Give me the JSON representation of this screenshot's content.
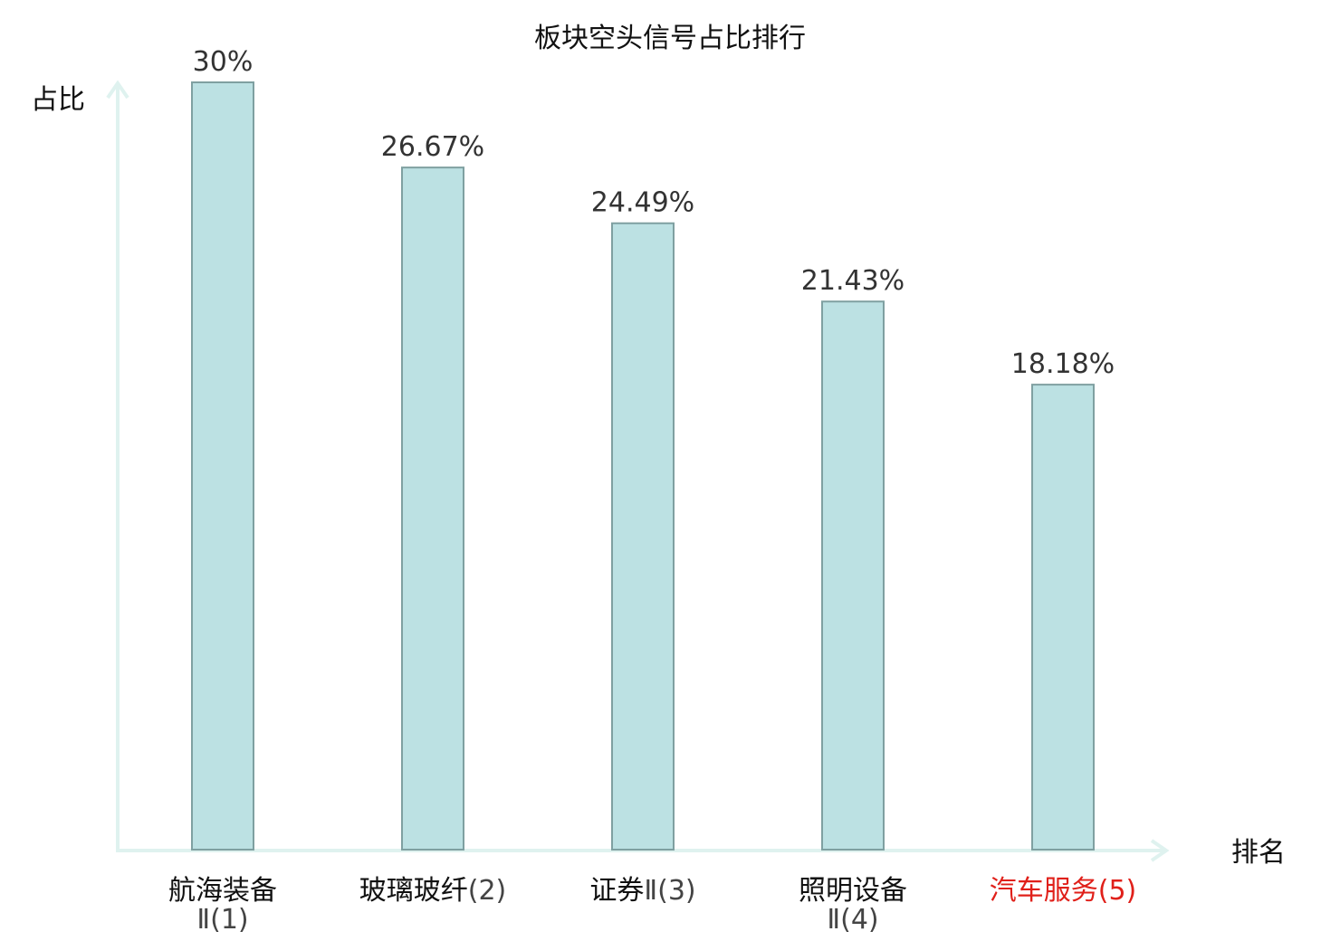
{
  "chart_data": {
    "type": "bar",
    "title": "板块空头信号占比排行",
    "xlabel": "排名",
    "ylabel": "占比",
    "categories": [
      {
        "name": "航海装备",
        "rank": "Ⅱ(1)"
      },
      {
        "name": "玻璃玻纤",
        "rank": "(2)"
      },
      {
        "name": "证券",
        "rank": "Ⅱ(3)"
      },
      {
        "name": "照明设备",
        "rank": "Ⅱ(4)"
      },
      {
        "name": "汽车服务",
        "rank": "(5)",
        "highlight": true
      }
    ],
    "values": [
      30,
      26.67,
      24.49,
      21.43,
      18.18
    ],
    "value_labels": [
      "30%",
      "26.67%",
      "24.49%",
      "21.43%",
      "18.18%"
    ],
    "ylim": [
      0,
      30
    ],
    "grid": false,
    "legend": "none",
    "colors": {
      "bar_fill": "#bce1e3",
      "bar_stroke": "#7fa0a1",
      "axis": "#dff2ef",
      "highlight_text": "#e0201a",
      "normal_text": "#111111",
      "rank_text": "#444444"
    }
  }
}
